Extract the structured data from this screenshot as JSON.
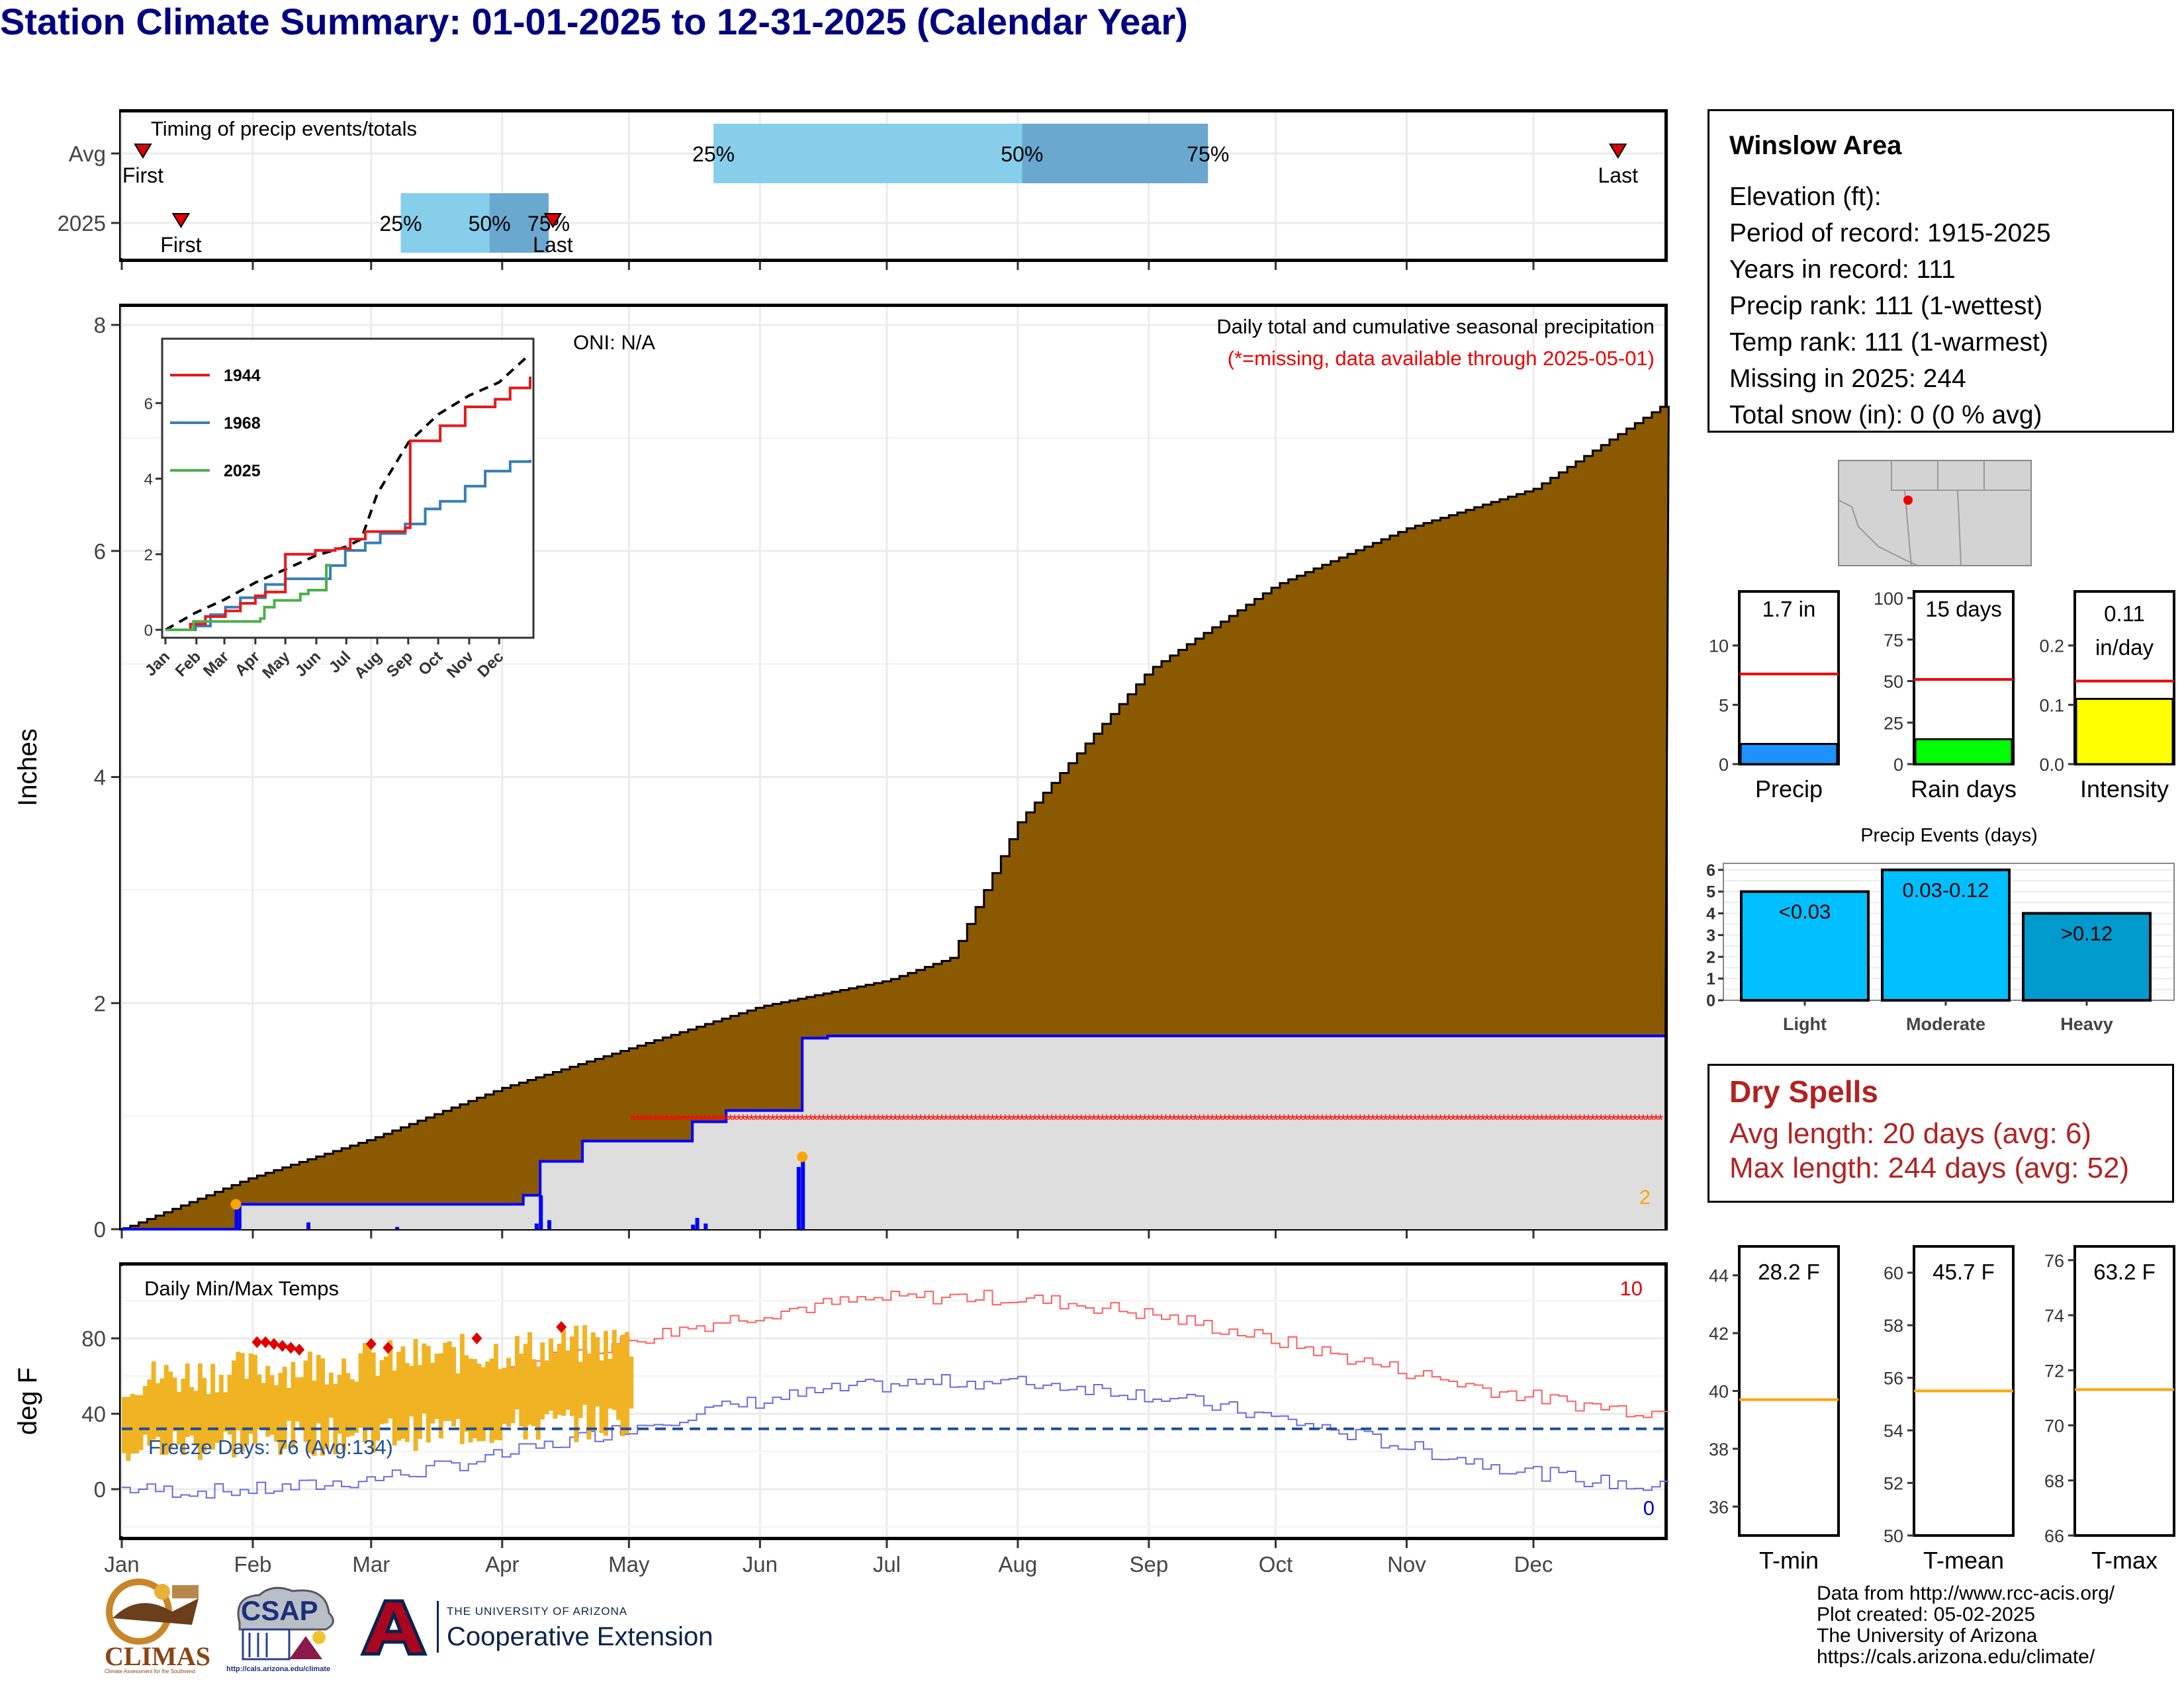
{
  "title": "Station Climate Summary: 01-01-2025 to 12-31-2025 (Calendar Year)",
  "timing": {
    "title": "Timing of precip events/totals",
    "rows": [
      "Avg",
      "2025"
    ],
    "avg": {
      "first": 5,
      "p25": 140,
      "p50": 213,
      "p75": 257,
      "last": 354
    },
    "current": {
      "first": 14,
      "p25": 66,
      "p50": 87,
      "p75": 101,
      "last": 102
    },
    "first_label": "First",
    "last_label": "Last",
    "p25_label": "25%",
    "p50_label": "50%",
    "p75_label": "75%",
    "colors": {
      "light": "#87ceeb",
      "dark": "#6aa8d0",
      "marker": "#e00000"
    }
  },
  "precip_panel": {
    "ylabel": "Inches",
    "yticks": [
      0,
      2,
      4,
      6,
      8
    ],
    "note1": "Daily total and cumulative seasonal precipitation",
    "note2": "(*=missing, data available through 2025-05-01)",
    "oni": "ONI: N/A",
    "corner_count": "2",
    "colors": {
      "normal": "#8b5a00",
      "observed": "#0000ff",
      "fill": "#dedede",
      "missing": "#ff0000",
      "marker": "#ffa500"
    }
  },
  "inset": {
    "legend": [
      "1944",
      "1968",
      "2025"
    ],
    "legend_colors": [
      "#e41a1c",
      "#377eb8",
      "#4daf4a"
    ],
    "yticks": [
      0,
      2,
      4,
      6
    ],
    "months": [
      "Jan",
      "Feb",
      "Mar",
      "Apr",
      "May",
      "Jun",
      "Jul",
      "Aug",
      "Sep",
      "Oct",
      "Nov",
      "Dec"
    ]
  },
  "temp_panel": {
    "ylabel": "deg F",
    "title": "Daily Min/Max Temps",
    "freeze_text": "Freeze Days: 76 (Avg:134)",
    "count_high": "10",
    "count_low": "0",
    "yticks": [
      0,
      40,
      80
    ],
    "freeze_line": 32,
    "colors": {
      "bars": "#f0b323",
      "max": "#ff6060",
      "min": "#6a6ae0",
      "freeze": "#1f4e9a",
      "record": "#e00000"
    }
  },
  "months": [
    "Jan",
    "Feb",
    "Mar",
    "Apr",
    "May",
    "Jun",
    "Jul",
    "Aug",
    "Sep",
    "Oct",
    "Nov",
    "Dec"
  ],
  "station": {
    "name": "Winslow Area",
    "lines": [
      "Elevation (ft):",
      "Period of record: 1915-2025",
      "Years in record: 111",
      "Precip rank: 111 (1-wettest)",
      "Temp rank: 111 (1-warmest)",
      "Missing in 2025: 244",
      "Total snow (in): 0 (0 % avg)"
    ]
  },
  "gauges": [
    {
      "label": "Precip",
      "value_text": "1.7 in",
      "value": 1.7,
      "avg": 7.6,
      "max": 14,
      "ticks": [
        0,
        5,
        10
      ],
      "color": "#1e90ff"
    },
    {
      "label": "Rain days",
      "value_text": "15 days",
      "value": 15,
      "avg": 51,
      "max": 100,
      "ticks": [
        0,
        25,
        50,
        75,
        100
      ],
      "color": "#00ff00"
    },
    {
      "label": "Intensity",
      "value_text": "0.11 in/day",
      "value": 0.11,
      "avg": 0.14,
      "max": 0.28,
      "ticks": [
        "0.0",
        "0.1",
        "0.2"
      ],
      "color": "#ffff00"
    }
  ],
  "events": {
    "title": "Precip Events (days)",
    "categories": [
      "Light",
      "Moderate",
      "Heavy"
    ],
    "values": [
      5,
      6,
      4
    ],
    "labels": [
      "<0.03",
      "0.03-0.12",
      ">0.12"
    ],
    "colors": [
      "#00bfff",
      "#00bfff",
      "#009acd"
    ],
    "yticks": [
      0,
      1,
      2,
      3,
      4,
      5,
      6
    ]
  },
  "dry_spells": {
    "title": "Dry Spells",
    "avg_line": "Avg length: 20 days (avg: 6)",
    "max_line": "Max length: 244 days (avg: 52)",
    "color": "#b22222"
  },
  "temp_gauges": [
    {
      "label": "T-min",
      "value_text": "28.2 F",
      "avg": 39.7,
      "min": 35,
      "max": 45,
      "ticks": [
        36,
        38,
        40,
        42,
        44
      ]
    },
    {
      "label": "T-mean",
      "value_text": "45.7 F",
      "avg": 55.5,
      "min": 50,
      "max": 61,
      "ticks": [
        50,
        52,
        54,
        56,
        58,
        60
      ]
    },
    {
      "label": "T-max",
      "value_text": "63.2 F",
      "avg": 71.3,
      "min": 66,
      "max": 76.5,
      "ticks": [
        66,
        68,
        70,
        72,
        74,
        76
      ]
    }
  ],
  "footer": [
    "Data from http://www.rcc-acis.org/",
    "Plot created: 05-02-2025",
    "The University of Arizona",
    "https://cals.arizona.edu/climate/"
  ],
  "logos": {
    "climas": "CLIMAS",
    "climas_sub": "Climate Assessment for the Southwest",
    "csap": "CSAP",
    "csap_url": "http://cals.arizona.edu/climate",
    "ua_small": "THE UNIVERSITY OF ARIZONA",
    "ua_big": "Cooperative Extension"
  }
}
